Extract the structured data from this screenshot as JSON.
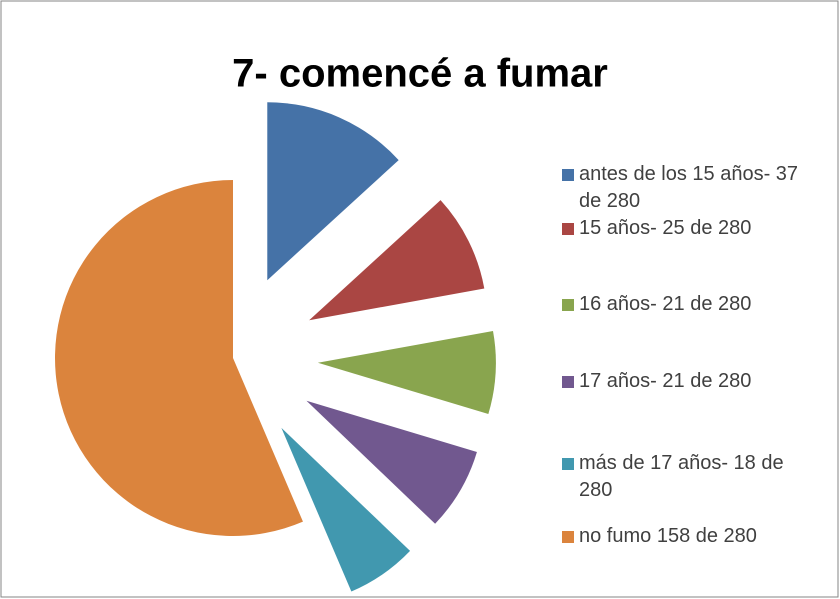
{
  "chart_data": {
    "type": "pie",
    "title": "7- comencé a fumar",
    "categories": [
      "antes de los 15 años- 37 de 280",
      "15 años- 25 de 280",
      "16 años- 21 de 280",
      "17 años- 21 de 280",
      "más de 17 años- 18 de 280",
      "no fumo 158 de 280"
    ],
    "values": [
      37,
      25,
      21,
      21,
      18,
      158
    ],
    "colors": [
      "#4572a7",
      "#aa4643",
      "#89a54e",
      "#71588f",
      "#4198af",
      "#db843d"
    ],
    "legend": "right"
  }
}
